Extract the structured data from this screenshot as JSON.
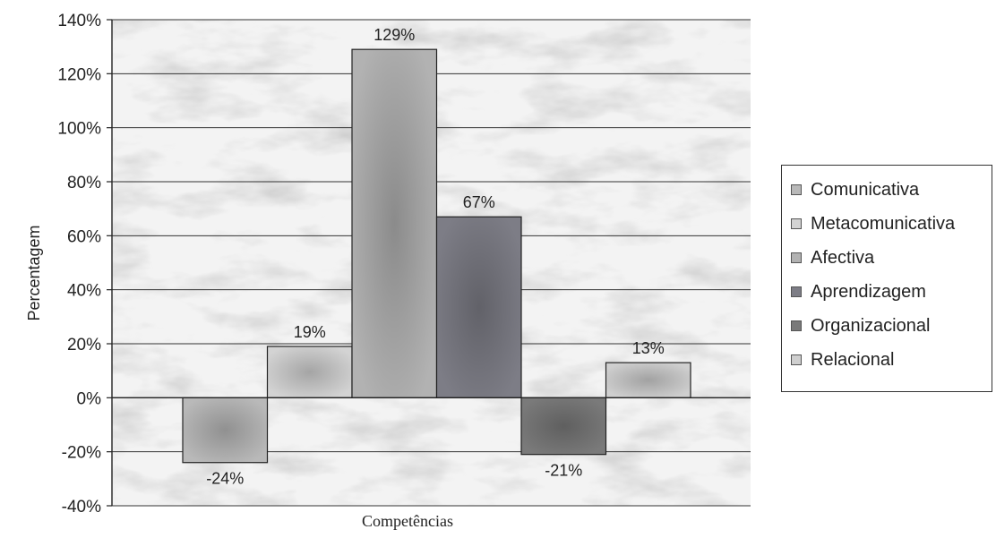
{
  "chart_data": {
    "type": "bar",
    "categories": [
      "Comunicativa",
      "Metacomunicativa",
      "Afectiva",
      "Aprendizagem",
      "Organizacional",
      "Relacional"
    ],
    "values": [
      -24,
      19,
      129,
      67,
      -21,
      13
    ],
    "data_labels": [
      "-24%",
      "19%",
      "129%",
      "67%",
      "-21%",
      "13%"
    ],
    "series_colors": [
      "#b9b9b9",
      "#d3d3d3",
      "#b2b2b2",
      "#7d7d86",
      "#7a7a7a",
      "#cfcfcf"
    ],
    "title": "",
    "xlabel": "Competências",
    "ylabel": "Percentagem",
    "ylim": [
      -40,
      140
    ],
    "yticks": [
      -40,
      -20,
      0,
      20,
      40,
      60,
      80,
      100,
      120,
      140
    ],
    "ytick_labels": [
      "-40%",
      "-20%",
      "0%",
      "20%",
      "40%",
      "60%",
      "80%",
      "100%",
      "120%",
      "140%"
    ],
    "grid": true,
    "legend_placement": "right"
  }
}
